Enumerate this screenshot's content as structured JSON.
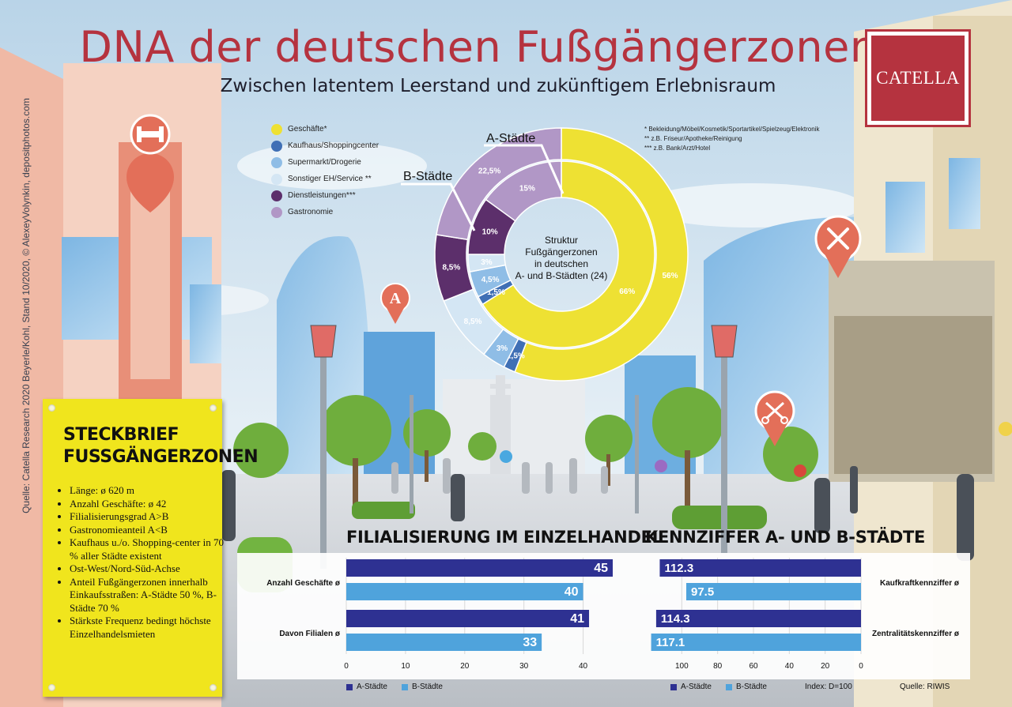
{
  "header": {
    "title": "DNA der deutschen Fußgängerzonen",
    "subtitle": "Zwischen latentem Leerstand und zukünftigem Erlebnisraum",
    "logo": "CATELLA"
  },
  "source_note": "Quelle: Catella Research 2020 Beyerle/Kohl, Stand 10/2020, © AlexeyVolynkin, depositphotos.com",
  "footnotes": [
    "*   Bekleidung/Möbel/Kosmetik/Sportartikel/Spielzeug/Elektronik",
    "** z.B. Friseur/Apotheke/Reinigung",
    "*** z.B. Bank/Arzt/Hotel"
  ],
  "icons": [
    "dumbbell-icon",
    "pharmacy-icon",
    "restaurant-icon",
    "scissors-icon"
  ],
  "colors": {
    "title": "#b5333f",
    "brand": "#b5333f",
    "a_staedte": "#2e3192",
    "b_staedte": "#4fa3dc",
    "profile_bg": "#f0e51d"
  },
  "profile": {
    "title_line1": "STECKBRIEF",
    "title_line2": "FUSSGÄNGERZONEN",
    "items": [
      "Länge: ø 620 m",
      "Anzahl Geschäfte: ø 42",
      "Filialisierungsgrad A>B",
      "Gastronomieanteil A<B",
      "Kaufhaus u./o. Shopping-center in 70 % aller Städte existent",
      "Ost-West/Nord-Süd-Achse",
      "Anteil Fußgängerzonen innerhalb Einkaufsstraßen: A-Städte 50 %, B-Städte 70 %",
      "Stärkste Frequenz bedingt höchste Einzelhandelsmieten"
    ]
  },
  "chart_data": [
    {
      "type": "pie",
      "variant": "double-donut",
      "center_text": "Struktur Fußgängerzonen in deutschen A- und B-Städten (24)",
      "categories": [
        "Geschäfte*",
        "Kaufhaus/Shoppingcenter",
        "Supermarkt/Drogerie",
        "Sonstiger EH/Service **",
        "Dienstleistungen***",
        "Gastronomie"
      ],
      "colors": [
        "#eee133",
        "#3f6fb5",
        "#8fbde6",
        "#d4e6f4",
        "#5c2f6b",
        "#b197c6"
      ],
      "series": [
        {
          "name": "A-Städte",
          "values": [
            66,
            1.5,
            4.5,
            3,
            10,
            15
          ],
          "labels": [
            "66%",
            "1,5%",
            "4,5%",
            "3%",
            "10%",
            "15%"
          ]
        },
        {
          "name": "B-Städte",
          "values": [
            56,
            1.5,
            3,
            8.5,
            8.5,
            22.5
          ],
          "labels": [
            "56%",
            "1,5%",
            "3%",
            "8,5%",
            "8,5%",
            "22,5%"
          ]
        }
      ]
    },
    {
      "type": "bar",
      "orientation": "horizontal",
      "title": "FILIALISIERUNG IM EINZELHANDEL",
      "categories": [
        "Anzahl Geschäfte ø",
        "Davon Filialen ø"
      ],
      "series": [
        {
          "name": "A-Städte",
          "values": [
            45,
            41
          ]
        },
        {
          "name": "B-Städte",
          "values": [
            40,
            33
          ]
        }
      ],
      "xlim": [
        0,
        45
      ],
      "ticks": [
        0,
        10,
        20,
        30,
        40
      ]
    },
    {
      "type": "bar",
      "orientation": "horizontal-reversed",
      "title": "KENNZIFFER A- UND B-STÄDTE",
      "categories": [
        "Kaufkraftkennziffer ø",
        "Zentralitätskennziffer ø"
      ],
      "series": [
        {
          "name": "A-Städte",
          "values": [
            112.3,
            114.3
          ]
        },
        {
          "name": "B-Städte",
          "values": [
            97.5,
            117.1
          ]
        }
      ],
      "xlim": [
        0,
        120
      ],
      "ticks": [
        100,
        80,
        60,
        40,
        20,
        0
      ],
      "note": "Index: D=100",
      "source": "Quelle: RIWIS"
    }
  ]
}
